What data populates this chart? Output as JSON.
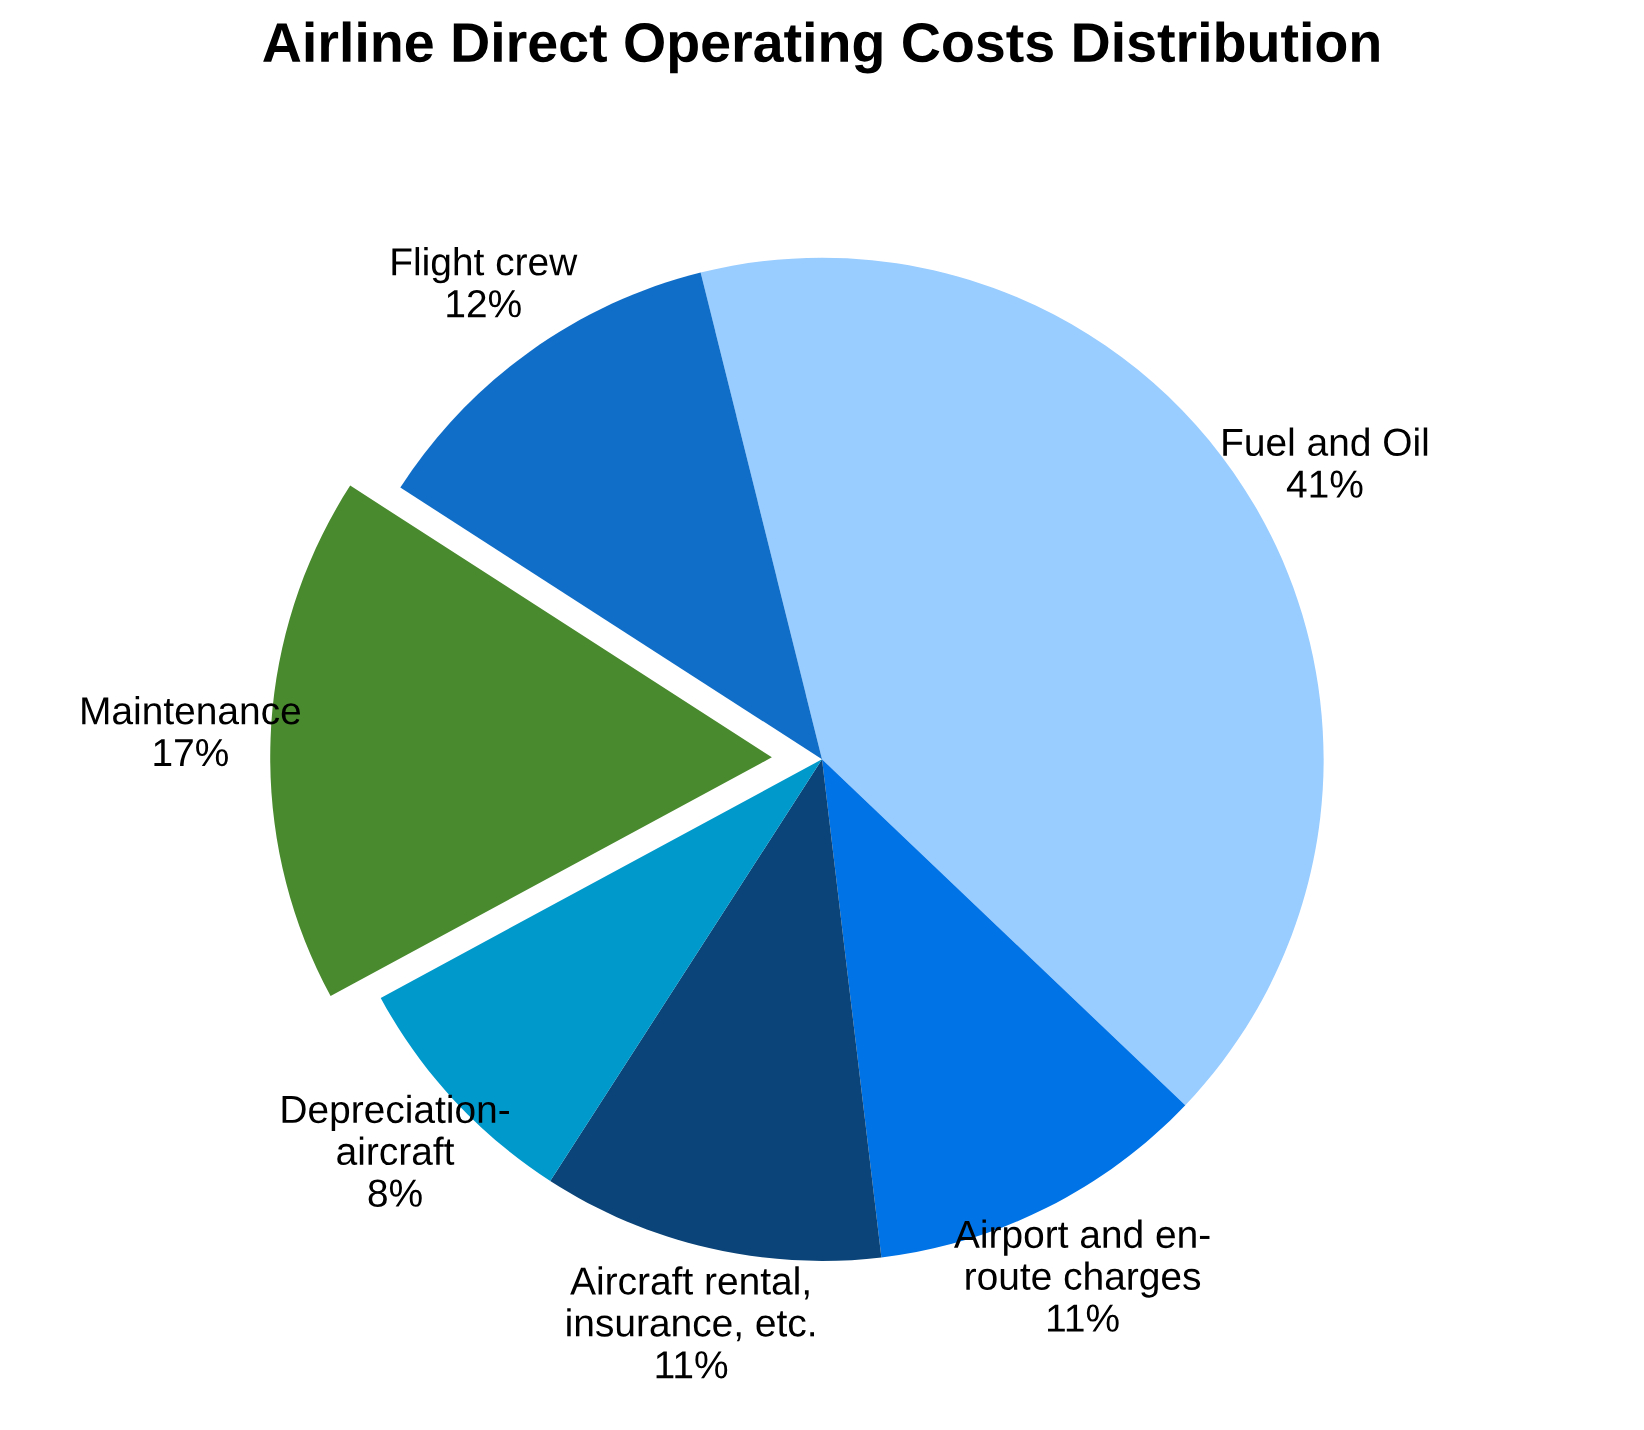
{
  "chart_data": {
    "type": "pie",
    "title": "Airline Direct Operating Costs Distribution",
    "categories": [
      "Fuel and Oil",
      "Airport and en-\nroute charges",
      "Aircraft rental,\ninsurance, etc.",
      "Depreciation-\naircraft",
      "Maintenance",
      "Flight crew"
    ],
    "values": [
      41,
      11,
      11,
      8,
      17,
      12
    ],
    "value_labels": [
      "41%",
      "11%",
      "11%",
      "8%",
      "17%",
      "12%"
    ],
    "colors": [
      "#99ccff",
      "#0073e6",
      "#0a4478",
      "#0099cc",
      "#4a8a2e",
      "#106ec8"
    ],
    "legend": false
  }
}
